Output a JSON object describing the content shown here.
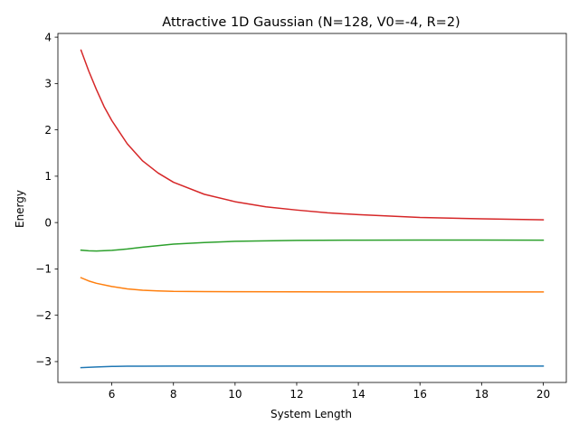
{
  "chart_data": {
    "type": "line",
    "title": "Attractive 1D Gaussian (N=128, V0=-4, R=2)",
    "xlabel": "System Length",
    "ylabel": "Energy",
    "xlim": [
      4.25,
      20.75
    ],
    "ylim": [
      -3.45,
      4.08
    ],
    "xticks": [
      6,
      8,
      10,
      12,
      14,
      16,
      18,
      20
    ],
    "xtick_labels": [
      "6",
      "8",
      "10",
      "12",
      "14",
      "16",
      "18",
      "20"
    ],
    "yticks": [
      -3,
      -2,
      -1,
      0,
      1,
      2,
      3,
      4
    ],
    "ytick_labels": [
      "−3",
      "−2",
      "−1",
      "0",
      "1",
      "2",
      "3",
      "4"
    ],
    "grid": false,
    "legend": "none",
    "series": [
      {
        "color": "#1f77b4",
        "x": [
          5,
          5.5,
          6,
          6.5,
          7,
          8,
          9,
          10,
          12,
          14,
          16,
          18,
          20
        ],
        "y": [
          -3.13,
          -3.115,
          -3.105,
          -3.1,
          -3.098,
          -3.097,
          -3.097,
          -3.097,
          -3.097,
          -3.097,
          -3.097,
          -3.097,
          -3.097
        ]
      },
      {
        "color": "#ff7f0e",
        "x": [
          5,
          5.25,
          5.5,
          6,
          6.5,
          7,
          7.5,
          8,
          9,
          10,
          12,
          14,
          16,
          18,
          20
        ],
        "y": [
          -1.19,
          -1.26,
          -1.31,
          -1.38,
          -1.43,
          -1.46,
          -1.475,
          -1.485,
          -1.49,
          -1.493,
          -1.495,
          -1.496,
          -1.496,
          -1.496,
          -1.497
        ]
      },
      {
        "color": "#2ca02c",
        "x": [
          5,
          5.25,
          5.5,
          6,
          6.5,
          7,
          8,
          9,
          10,
          11,
          12,
          14,
          16,
          18,
          20
        ],
        "y": [
          -0.595,
          -0.61,
          -0.615,
          -0.6,
          -0.57,
          -0.53,
          -0.465,
          -0.43,
          -0.405,
          -0.395,
          -0.385,
          -0.38,
          -0.378,
          -0.378,
          -0.38
        ]
      },
      {
        "color": "#d62728",
        "x": [
          5,
          5.25,
          5.5,
          5.75,
          6,
          6.5,
          7,
          7.5,
          8,
          9,
          10,
          11,
          12,
          13,
          14,
          16,
          18,
          20
        ],
        "y": [
          3.72,
          3.27,
          2.87,
          2.5,
          2.2,
          1.7,
          1.33,
          1.07,
          0.87,
          0.61,
          0.45,
          0.34,
          0.27,
          0.21,
          0.17,
          0.11,
          0.08,
          0.06
        ]
      }
    ]
  }
}
